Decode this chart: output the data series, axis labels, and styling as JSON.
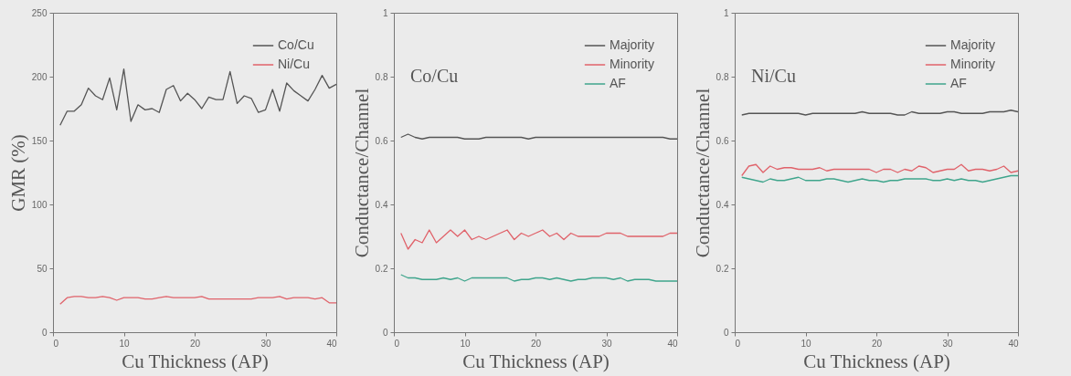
{
  "chart_data": [
    {
      "type": "line",
      "xlabel": "Cu Thickness (AP)",
      "ylabel": "GMR (%)",
      "x": [
        1,
        2,
        3,
        4,
        5,
        6,
        7,
        8,
        9,
        10,
        11,
        12,
        13,
        14,
        15,
        16,
        17,
        18,
        19,
        20,
        21,
        22,
        23,
        24,
        25,
        26,
        27,
        28,
        29,
        30,
        31,
        32,
        33,
        34,
        35,
        36,
        37,
        38,
        39,
        40
      ],
      "xlim": [
        0,
        40
      ],
      "xticks": [
        0,
        10,
        20,
        30,
        40
      ],
      "ylim": [
        0,
        250
      ],
      "yticks": [
        0,
        50,
        100,
        150,
        200,
        250
      ],
      "legend": "top right",
      "line_style": "solid",
      "series": [
        {
          "name": "Co/Cu",
          "color": "#555555",
          "values": [
            162,
            173,
            173,
            178,
            191,
            185,
            182,
            199,
            174,
            206,
            165,
            178,
            174,
            175,
            172,
            190,
            193,
            181,
            187,
            182,
            175,
            184,
            182,
            182,
            204,
            179,
            185,
            183,
            172,
            174,
            190,
            173,
            195,
            189,
            185,
            181,
            190,
            201,
            191,
            194
          ]
        },
        {
          "name": "Ni/Cu",
          "color": "#e0626a",
          "values": [
            22,
            27,
            28,
            28,
            27,
            27,
            28,
            27,
            25,
            27,
            27,
            27,
            26,
            26,
            27,
            28,
            27,
            27,
            27,
            27,
            28,
            26,
            26,
            26,
            26,
            26,
            26,
            26,
            27,
            27,
            27,
            28,
            26,
            27,
            27,
            27,
            26,
            27,
            23,
            23
          ]
        }
      ]
    },
    {
      "type": "line",
      "xlabel": "Cu Thickness (AP)",
      "ylabel": "Conductance/Channel",
      "annotations": [
        "Co/Cu"
      ],
      "x": [
        1,
        2,
        3,
        4,
        5,
        6,
        7,
        8,
        9,
        10,
        11,
        12,
        13,
        14,
        15,
        16,
        17,
        18,
        19,
        20,
        21,
        22,
        23,
        24,
        25,
        26,
        27,
        28,
        29,
        30,
        31,
        32,
        33,
        34,
        35,
        36,
        37,
        38,
        39,
        40
      ],
      "xlim": [
        0,
        40
      ],
      "xticks": [
        0,
        10,
        20,
        30,
        40
      ],
      "ylim": [
        0,
        1
      ],
      "yticks": [
        0,
        0.2,
        0.4,
        0.6,
        0.8,
        1
      ],
      "legend": "top right",
      "line_style": "solid",
      "series": [
        {
          "name": "Majority",
          "color": "#555555",
          "values": [
            0.61,
            0.62,
            0.61,
            0.605,
            0.61,
            0.61,
            0.61,
            0.61,
            0.61,
            0.605,
            0.605,
            0.605,
            0.61,
            0.61,
            0.61,
            0.61,
            0.61,
            0.61,
            0.605,
            0.61,
            0.61,
            0.61,
            0.61,
            0.61,
            0.61,
            0.61,
            0.61,
            0.61,
            0.61,
            0.61,
            0.61,
            0.61,
            0.61,
            0.61,
            0.61,
            0.61,
            0.61,
            0.61,
            0.605,
            0.605
          ]
        },
        {
          "name": "Minority",
          "color": "#e0626a",
          "values": [
            0.31,
            0.26,
            0.29,
            0.28,
            0.32,
            0.28,
            0.3,
            0.32,
            0.3,
            0.32,
            0.29,
            0.3,
            0.29,
            0.3,
            0.31,
            0.32,
            0.29,
            0.31,
            0.3,
            0.31,
            0.32,
            0.3,
            0.31,
            0.29,
            0.31,
            0.3,
            0.3,
            0.3,
            0.3,
            0.31,
            0.31,
            0.31,
            0.3,
            0.3,
            0.3,
            0.3,
            0.3,
            0.3,
            0.31,
            0.31
          ]
        },
        {
          "name": "AF",
          "color": "#3fa58c",
          "values": [
            0.18,
            0.17,
            0.17,
            0.165,
            0.165,
            0.165,
            0.17,
            0.165,
            0.17,
            0.16,
            0.17,
            0.17,
            0.17,
            0.17,
            0.17,
            0.17,
            0.16,
            0.165,
            0.165,
            0.17,
            0.17,
            0.165,
            0.17,
            0.165,
            0.16,
            0.165,
            0.165,
            0.17,
            0.17,
            0.17,
            0.165,
            0.17,
            0.16,
            0.165,
            0.165,
            0.165,
            0.16,
            0.16,
            0.16,
            0.16
          ]
        }
      ]
    },
    {
      "type": "line",
      "xlabel": "Cu Thickness (AP)",
      "ylabel": "Conductance/Channel",
      "annotations": [
        "Ni/Cu"
      ],
      "x": [
        1,
        2,
        3,
        4,
        5,
        6,
        7,
        8,
        9,
        10,
        11,
        12,
        13,
        14,
        15,
        16,
        17,
        18,
        19,
        20,
        21,
        22,
        23,
        24,
        25,
        26,
        27,
        28,
        29,
        30,
        31,
        32,
        33,
        34,
        35,
        36,
        37,
        38,
        39,
        40
      ],
      "xlim": [
        0,
        40
      ],
      "xticks": [
        0,
        10,
        20,
        30,
        40
      ],
      "ylim": [
        0,
        1
      ],
      "yticks": [
        0,
        0.2,
        0.4,
        0.6,
        0.8,
        1
      ],
      "legend": "top right",
      "line_style": "solid",
      "series": [
        {
          "name": "Majority",
          "color": "#555555",
          "values": [
            0.68,
            0.685,
            0.685,
            0.685,
            0.685,
            0.685,
            0.685,
            0.685,
            0.685,
            0.68,
            0.685,
            0.685,
            0.685,
            0.685,
            0.685,
            0.685,
            0.685,
            0.69,
            0.685,
            0.685,
            0.685,
            0.685,
            0.68,
            0.68,
            0.69,
            0.685,
            0.685,
            0.685,
            0.685,
            0.69,
            0.69,
            0.685,
            0.685,
            0.685,
            0.685,
            0.69,
            0.69,
            0.69,
            0.695,
            0.69
          ]
        },
        {
          "name": "Minority",
          "color": "#e0626a",
          "values": [
            0.49,
            0.52,
            0.525,
            0.5,
            0.52,
            0.51,
            0.515,
            0.515,
            0.51,
            0.51,
            0.51,
            0.515,
            0.505,
            0.51,
            0.51,
            0.51,
            0.51,
            0.51,
            0.51,
            0.5,
            0.51,
            0.51,
            0.5,
            0.51,
            0.505,
            0.52,
            0.515,
            0.5,
            0.505,
            0.51,
            0.51,
            0.525,
            0.505,
            0.51,
            0.51,
            0.505,
            0.51,
            0.52,
            0.5,
            0.505
          ]
        },
        {
          "name": "AF",
          "color": "#3fa58c",
          "values": [
            0.485,
            0.48,
            0.475,
            0.47,
            0.48,
            0.475,
            0.475,
            0.48,
            0.485,
            0.475,
            0.475,
            0.475,
            0.48,
            0.48,
            0.475,
            0.47,
            0.475,
            0.48,
            0.475,
            0.475,
            0.47,
            0.475,
            0.475,
            0.48,
            0.48,
            0.48,
            0.48,
            0.475,
            0.475,
            0.48,
            0.475,
            0.48,
            0.475,
            0.475,
            0.47,
            0.475,
            0.48,
            0.485,
            0.49,
            0.49
          ]
        }
      ]
    }
  ]
}
